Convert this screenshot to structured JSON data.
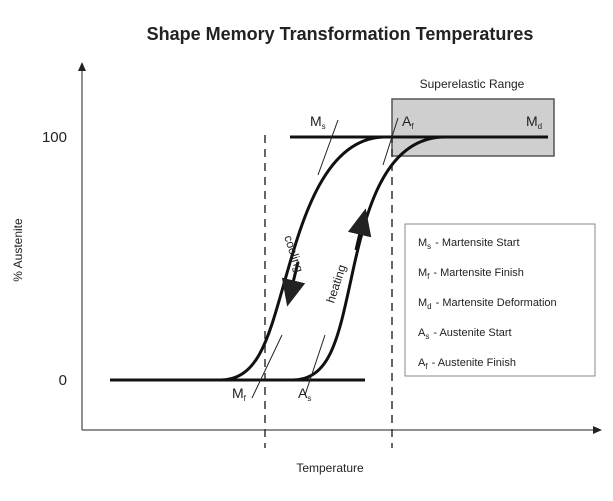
{
  "title": "Shape Memory Transformation Temperatures",
  "y_axis_label": "% Austenite",
  "x_axis_label": "Temperature",
  "y_labels": [
    "100",
    "0"
  ],
  "superelastic_label": "Superelastic Range",
  "points": {
    "ms": {
      "symbol": "M",
      "sub": "s"
    },
    "af": {
      "symbol": "A",
      "sub": "f"
    },
    "md": {
      "symbol": "M",
      "sub": "d"
    },
    "mf": {
      "symbol": "M",
      "sub": "f"
    },
    "as": {
      "symbol": "A",
      "sub": "s"
    }
  },
  "curve_labels": {
    "cooling": "cooling",
    "heating": "heating"
  },
  "legend": [
    {
      "symbol": "M",
      "sub": "s",
      "text": "- Martensite Start"
    },
    {
      "symbol": "M",
      "sub": "f",
      "text": "- Martensite Finish"
    },
    {
      "symbol": "M",
      "sub": "d",
      "text": "- Martensite Deformation"
    },
    {
      "symbol": "A",
      "sub": "s",
      "text": "- Austenite Start"
    },
    {
      "symbol": "A",
      "sub": "f",
      "text": "- Austenite Finish"
    }
  ]
}
